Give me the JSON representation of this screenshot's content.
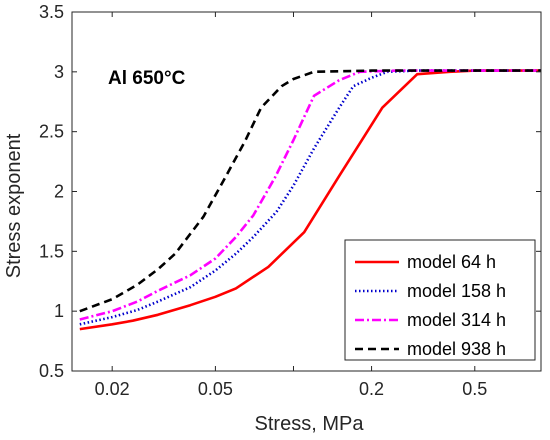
{
  "chart_data": {
    "type": "line",
    "annotation": "Al 650°C",
    "xlabel": "Stress, MPa",
    "ylabel": "Stress exponent",
    "xscale": "log",
    "xlim": [
      0.014,
      0.9
    ],
    "ylim": [
      0.5,
      3.5
    ],
    "xticks": [
      0.02,
      0.05,
      0.1,
      0.2,
      0.5
    ],
    "xtick_labels": [
      "0.02",
      "0.05",
      "",
      "0.2",
      "0.5"
    ],
    "yticks": [
      0.5,
      1,
      1.5,
      2,
      2.5,
      3,
      3.5
    ],
    "ytick_labels": [
      "0.5",
      "1",
      "1.5",
      "2",
      "2.5",
      "3",
      "3.5"
    ],
    "grid": false,
    "legend_position": "bottom-right",
    "series": [
      {
        "name": "model 64 h",
        "color": "#ff0000",
        "dash": "solid",
        "x": [
          0.015,
          0.02,
          0.024,
          0.03,
          0.04,
          0.05,
          0.06,
          0.08,
          0.11,
          0.15,
          0.18,
          0.22,
          0.3,
          0.4,
          0.5,
          0.6,
          0.8,
          0.9
        ],
        "y": [
          0.85,
          0.89,
          0.92,
          0.97,
          1.05,
          1.12,
          1.19,
          1.37,
          1.66,
          2.13,
          2.4,
          2.7,
          2.98,
          3.0,
          3.01,
          3.01,
          3.01,
          3.01
        ]
      },
      {
        "name": "model 158 h",
        "color": "#0000cc",
        "dash": "dotted",
        "x": [
          0.015,
          0.02,
          0.025,
          0.03,
          0.04,
          0.05,
          0.06,
          0.07,
          0.086,
          0.1,
          0.12,
          0.15,
          0.17,
          0.2,
          0.23,
          0.3,
          0.5,
          0.9
        ],
        "y": [
          0.89,
          0.95,
          1.01,
          1.08,
          1.2,
          1.34,
          1.48,
          1.62,
          1.83,
          2.05,
          2.36,
          2.7,
          2.88,
          2.95,
          3.0,
          3.01,
          3.01,
          3.01
        ]
      },
      {
        "name": "model 314 h",
        "color": "#ff00ff",
        "dash": "dashdot",
        "x": [
          0.015,
          0.02,
          0.025,
          0.03,
          0.04,
          0.05,
          0.06,
          0.07,
          0.085,
          0.1,
          0.12,
          0.15,
          0.18,
          0.25,
          0.5,
          0.9
        ],
        "y": [
          0.93,
          1.0,
          1.08,
          1.17,
          1.3,
          1.44,
          1.62,
          1.8,
          2.12,
          2.43,
          2.8,
          2.93,
          3.0,
          3.01,
          3.01,
          3.01
        ]
      },
      {
        "name": "model 938 h",
        "color": "#000000",
        "dash": "dashed",
        "x": [
          0.015,
          0.02,
          0.025,
          0.03,
          0.035,
          0.045,
          0.055,
          0.065,
          0.075,
          0.09,
          0.1,
          0.12,
          0.2,
          0.5,
          0.9
        ],
        "y": [
          1.0,
          1.1,
          1.22,
          1.35,
          1.48,
          1.79,
          2.13,
          2.42,
          2.7,
          2.88,
          2.94,
          3.0,
          3.01,
          3.01,
          3.01
        ]
      }
    ]
  }
}
